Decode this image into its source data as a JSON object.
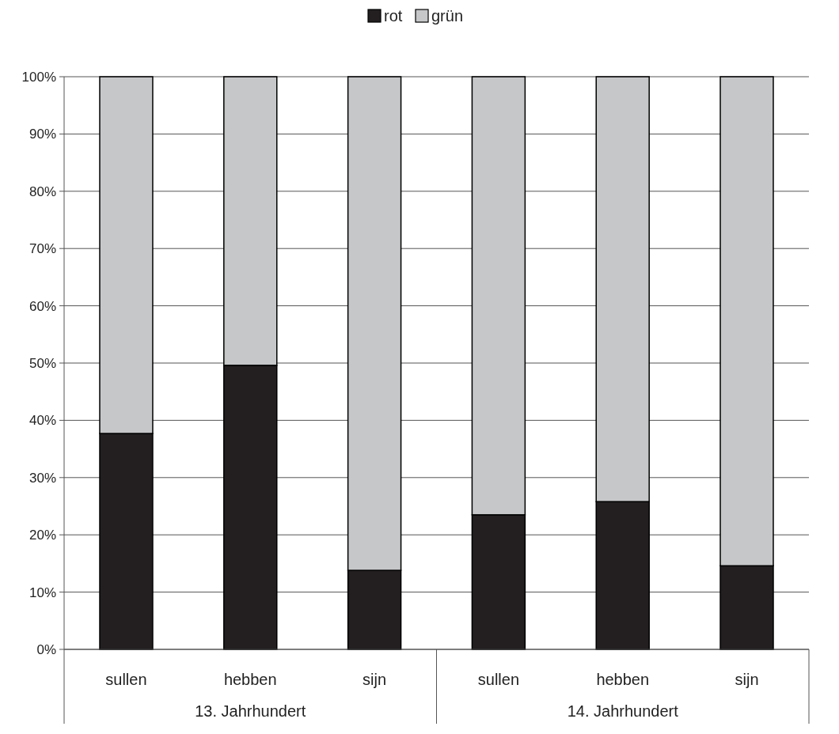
{
  "chart_data": {
    "type": "bar",
    "stacked": true,
    "categories": [
      "sullen",
      "hebben",
      "sijn",
      "sullen",
      "hebben",
      "sijn"
    ],
    "series": [
      {
        "name": "rot",
        "color": "#231f20",
        "values": [
          37.7,
          49.6,
          13.8,
          23.5,
          25.8,
          14.6
        ]
      },
      {
        "name": "grün",
        "color": "#c6c7c9",
        "values": [
          62.3,
          50.4,
          86.2,
          76.5,
          74.2,
          85.4
        ]
      }
    ],
    "ylim": [
      0,
      100
    ],
    "yticks": [
      {
        "value": 0,
        "label": "0%"
      },
      {
        "value": 10,
        "label": "10%"
      },
      {
        "value": 20,
        "label": "20%"
      },
      {
        "value": 30,
        "label": "30%"
      },
      {
        "value": 40,
        "label": "40%"
      },
      {
        "value": 50,
        "label": "50%"
      },
      {
        "value": 60,
        "label": "60%"
      },
      {
        "value": 70,
        "label": "70%"
      },
      {
        "value": 80,
        "label": "80%"
      },
      {
        "value": 90,
        "label": "90%"
      },
      {
        "value": 100,
        "label": "100%"
      }
    ],
    "grid": "y",
    "legend": "top",
    "annotations": [
      "13. Jahrhundert",
      "14. Jahrhundert"
    ]
  }
}
